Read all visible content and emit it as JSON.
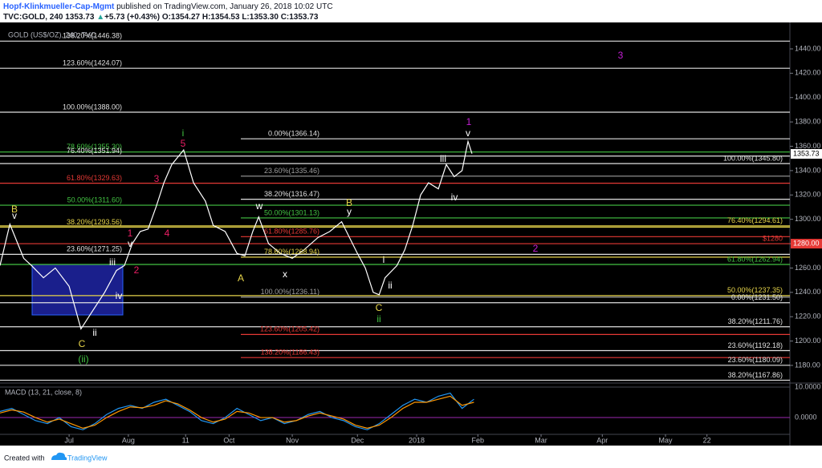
{
  "header": {
    "author": "Hopf-Klinkmueller-Cap-Mgmt",
    "published": " published on TradingView.com, January 26, 2018 10:02 UTC",
    "symbol": "TVC:GOLD, 240",
    "last": "1353.73",
    "arrow": "▲",
    "change": "+5.73 (+0.43%)",
    "ohlc": "O:1354.27 H:1354.53 L:1353.30 C:1353.73"
  },
  "footer": {
    "created": "Created with",
    "brand": "TradingView"
  },
  "chart_data": [
    {
      "type": "line",
      "title": "GOLD (US$/OZ), 240, TVC",
      "x": [
        0,
        5,
        12,
        16,
        22,
        28,
        35,
        41,
        47,
        53,
        59,
        63,
        67,
        71,
        75,
        79,
        83,
        87,
        93,
        98,
        104,
        108,
        114,
        120,
        124,
        128,
        131,
        136,
        142,
        148,
        154,
        161,
        167,
        173,
        177,
        181,
        185,
        189,
        192,
        195,
        201,
        205,
        209,
        213,
        217,
        222,
        226,
        230,
        234,
        237,
        239
      ],
      "xlim": [
        0,
        400
      ],
      "series": [
        {
          "color": "#ffffff",
          "values": [
            1262,
            1296,
            1268,
            1262,
            1252,
            1260,
            1245,
            1210,
            1225,
            1240,
            1258,
            1262,
            1280,
            1290,
            1292,
            1310,
            1330,
            1345,
            1357,
            1330,
            1315,
            1295,
            1290,
            1272,
            1270,
            1290,
            1302,
            1280,
            1272,
            1268,
            1275,
            1285,
            1290,
            1298,
            1285,
            1272,
            1260,
            1240,
            1238,
            1252,
            1262,
            1275,
            1295,
            1320,
            1330,
            1325,
            1345,
            1335,
            1340,
            1364,
            1354
          ]
        }
      ],
      "ylim": [
        1165.5,
        1460.4
      ],
      "yticks": [
        {
          "value": 1180,
          "label": "1180.00"
        },
        {
          "value": 1200,
          "label": "1200.00"
        },
        {
          "value": 1220,
          "label": "1220.00"
        },
        {
          "value": 1240,
          "label": "1240.00"
        },
        {
          "value": 1260,
          "label": "1260.00"
        },
        {
          "value": 1280,
          "label": "1280.00"
        },
        {
          "value": 1300,
          "label": "1300.00"
        },
        {
          "value": 1320,
          "label": "1320.00"
        },
        {
          "value": 1340,
          "label": "1340.00"
        },
        {
          "value": 1360,
          "label": "1360.00"
        },
        {
          "value": 1380,
          "label": "1380.00"
        },
        {
          "value": 1400,
          "label": "1400.00"
        },
        {
          "value": 1420,
          "label": "1420.00"
        },
        {
          "value": 1440,
          "label": "1440.00"
        }
      ],
      "last_price": 1353.73,
      "key_price": {
        "value": 1280,
        "label": "1280.00"
      },
      "levels": {
        "left": [
          {
            "value": 1446.38,
            "label": "138.20%(1446.38)",
            "color": "#e0e0e0"
          },
          {
            "value": 1424.07,
            "label": "123.60%(1424.07)",
            "color": "#e0e0e0"
          },
          {
            "value": 1388.0,
            "label": "100.00%(1388.00)",
            "color": "#e0e0e0"
          },
          {
            "value": 1355.3,
            "label": "78.60%(1355.30)",
            "color": "#43c443"
          },
          {
            "value": 1351.94,
            "label": "76.40%(1351.94)",
            "color": "#e0e0e0"
          },
          {
            "value": 1329.63,
            "label": "61.80%(1329.63)",
            "color": "#e53935"
          },
          {
            "value": 1311.6,
            "label": "50.00%(1311.60)",
            "color": "#43c443"
          },
          {
            "value": 1293.56,
            "label": "38.20%(1293.56)",
            "color": "#e6d44a"
          },
          {
            "value": 1271.25,
            "label": "23.60%(1271.25)",
            "color": "#e0e0e0"
          }
        ],
        "middle": [
          {
            "value": 1366.14,
            "label": "0.00%(1366.14)",
            "color": "#e0e0e0"
          },
          {
            "value": 1335.46,
            "label": "23.60%(1335.46)",
            "color": "#9e9e9e"
          },
          {
            "value": 1316.47,
            "label": "38.20%(1316.47)",
            "color": "#e0e0e0"
          },
          {
            "value": 1301.13,
            "label": "50.00%(1301.13)",
            "color": "#43c443"
          },
          {
            "value": 1285.76,
            "label": "61.80%(1285.76)",
            "color": "#e53935"
          },
          {
            "value": 1268.94,
            "label": "78.60%(1268.94)",
            "color": "#e6d44a"
          },
          {
            "value": 1236.11,
            "label": "100.00%(1236.11)",
            "color": "#9e9e9e"
          },
          {
            "value": 1205.42,
            "label": "123.60%(1205.42)",
            "color": "#e53935"
          },
          {
            "value": 1186.43,
            "label": "138.20%(1186.43)",
            "color": "#e53935"
          }
        ],
        "right": [
          {
            "value": 1345.8,
            "label": "100.00%(1345.80)",
            "color": "#e0e0e0"
          },
          {
            "value": 1294.61,
            "label": "76.40%(1294.61)",
            "color": "#e6d44a"
          },
          {
            "value": 1280,
            "label": "$1280",
            "color": "#e53935"
          },
          {
            "value": 1262.94,
            "label": "61.80%(1262.94)",
            "color": "#43c443"
          },
          {
            "value": 1237.35,
            "label": "50.00%(1237.35)",
            "color": "#e6d44a"
          },
          {
            "value": 1231.5,
            "label": "0.00%(1231.50)",
            "color": "#e0e0e0"
          },
          {
            "value": 1211.76,
            "label": "38.20%(1211.76)",
            "color": "#e0e0e0"
          },
          {
            "value": 1192.18,
            "label": "23.60%(1192.18)",
            "color": "#e0e0e0"
          },
          {
            "value": 1180.09,
            "label": "23.60%(1180.09)",
            "color": "#e0e0e0"
          },
          {
            "value": 1167.86,
            "label": "38.20%(1167.86)",
            "color": "#e0e0e0"
          }
        ]
      },
      "waves": [
        {
          "text": "B",
          "color": "#e6d44a"
        },
        {
          "text": "v",
          "color": "#ffffff"
        },
        {
          "text": "C",
          "color": "#e6d44a"
        },
        {
          "text": "(ii)",
          "color": "#43c443"
        },
        {
          "text": "ii",
          "color": "#ffffff"
        },
        {
          "text": "iv",
          "color": "#ffffff"
        },
        {
          "text": "iii",
          "color": "#ffffff"
        },
        {
          "text": "v",
          "color": "#ffffff"
        },
        {
          "text": "1",
          "color": "#e91e63"
        },
        {
          "text": "2",
          "color": "#e91e63"
        },
        {
          "text": "3",
          "color": "#e91e63"
        },
        {
          "text": "4",
          "color": "#e91e63"
        },
        {
          "text": "5",
          "color": "#e91e63"
        },
        {
          "text": "i",
          "color": "#43c443"
        },
        {
          "text": "A",
          "color": "#e6d44a"
        },
        {
          "text": "w",
          "color": "#ffffff"
        },
        {
          "text": "x",
          "color": "#ffffff"
        },
        {
          "text": "B",
          "color": "#e6d44a"
        },
        {
          "text": "y",
          "color": "#ffffff"
        },
        {
          "text": "C",
          "color": "#e6d44a"
        },
        {
          "text": "ii",
          "color": "#43c443"
        },
        {
          "text": "i",
          "color": "#ffffff"
        },
        {
          "text": "ii",
          "color": "#ffffff"
        },
        {
          "text": "iii",
          "color": "#ffffff"
        },
        {
          "text": "iv",
          "color": "#ffffff"
        },
        {
          "text": "v",
          "color": "#ffffff"
        },
        {
          "text": "1",
          "color": "#c51fd6"
        },
        {
          "text": "2",
          "color": "#c51fd6"
        },
        {
          "text": "3",
          "color": "#c51fd6"
        }
      ]
    },
    {
      "type": "line",
      "title": "MACD (13, 21, close, 8)",
      "x": [
        0,
        6,
        12,
        18,
        24,
        30,
        36,
        42,
        48,
        54,
        60,
        66,
        72,
        78,
        84,
        90,
        96,
        102,
        108,
        114,
        120,
        126,
        132,
        138,
        144,
        150,
        156,
        162,
        168,
        174,
        180,
        186,
        192,
        198,
        204,
        210,
        216,
        222,
        228,
        234,
        240
      ],
      "xlim": [
        0,
        400
      ],
      "xticks": [
        {
          "value": 35,
          "label": "Jul"
        },
        {
          "value": 65,
          "label": "Aug"
        },
        {
          "value": 94,
          "label": "11"
        },
        {
          "value": 116,
          "label": "Oct"
        },
        {
          "value": 148,
          "label": "Nov"
        },
        {
          "value": 181,
          "label": "Dec"
        },
        {
          "value": 211,
          "label": "2018"
        },
        {
          "value": 242,
          "label": "Feb"
        },
        {
          "value": 274,
          "label": "Mar"
        },
        {
          "value": 305,
          "label": "Apr"
        },
        {
          "value": 337,
          "label": "May"
        },
        {
          "value": 358,
          "label": "22"
        }
      ],
      "series": [
        {
          "color": "#2196f3",
          "values": [
            2,
            3,
            1,
            -1,
            -2,
            0,
            -3,
            -4,
            -2,
            1,
            3,
            4,
            3,
            5,
            6,
            4,
            2,
            -1,
            -2,
            0,
            3,
            1,
            -1,
            0,
            -2,
            -1,
            1,
            2,
            0,
            -1,
            -3,
            -4,
            -2,
            1,
            4,
            6,
            5,
            7,
            8,
            3,
            6
          ]
        },
        {
          "color": "#ff9800",
          "values": [
            1.5,
            2.5,
            1.8,
            0,
            -1.5,
            -0.5,
            -2,
            -3.5,
            -2.5,
            0,
            2,
            3.5,
            3.2,
            4,
            5.5,
            4.5,
            2.5,
            0,
            -1.5,
            -0.5,
            2,
            1.5,
            0,
            0,
            -1.5,
            -1,
            0.5,
            1.5,
            0.5,
            -0.5,
            -2.5,
            -3.5,
            -2.5,
            0,
            3,
            5,
            5,
            6,
            7,
            4,
            5
          ]
        }
      ],
      "ylim": [
        -5.5,
        11.3
      ],
      "yticks": [
        {
          "value": 0,
          "label": "0.0000"
        },
        {
          "value": 10,
          "label": "10.0000"
        }
      ]
    }
  ]
}
